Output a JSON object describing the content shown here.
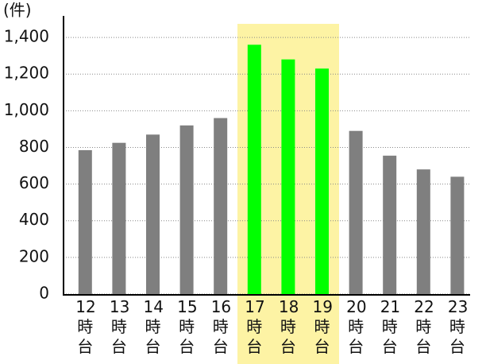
{
  "chart_data": {
    "type": "bar",
    "unit_label": "(件)",
    "categories": [
      "12時台",
      "13時台",
      "14時台",
      "15時台",
      "16時台",
      "17時台",
      "18時台",
      "19時台",
      "20時台",
      "21時台",
      "22時台",
      "23時台"
    ],
    "values": [
      785,
      825,
      870,
      920,
      960,
      1360,
      1280,
      1230,
      890,
      755,
      680,
      640
    ],
    "colors": [
      "#7f7f7f",
      "#7f7f7f",
      "#7f7f7f",
      "#7f7f7f",
      "#7f7f7f",
      "#00ff00",
      "#00ff00",
      "#00ff00",
      "#7f7f7f",
      "#7f7f7f",
      "#7f7f7f",
      "#7f7f7f"
    ],
    "ylim": [
      0,
      1500
    ],
    "yticks": [
      0,
      200,
      400,
      600,
      800,
      {
        "value": 1000,
        "label": "1,000"
      },
      {
        "value": 1200,
        "label": "1,200"
      },
      {
        "value": 1400,
        "label": "1,400"
      }
    ],
    "grid": true
  }
}
